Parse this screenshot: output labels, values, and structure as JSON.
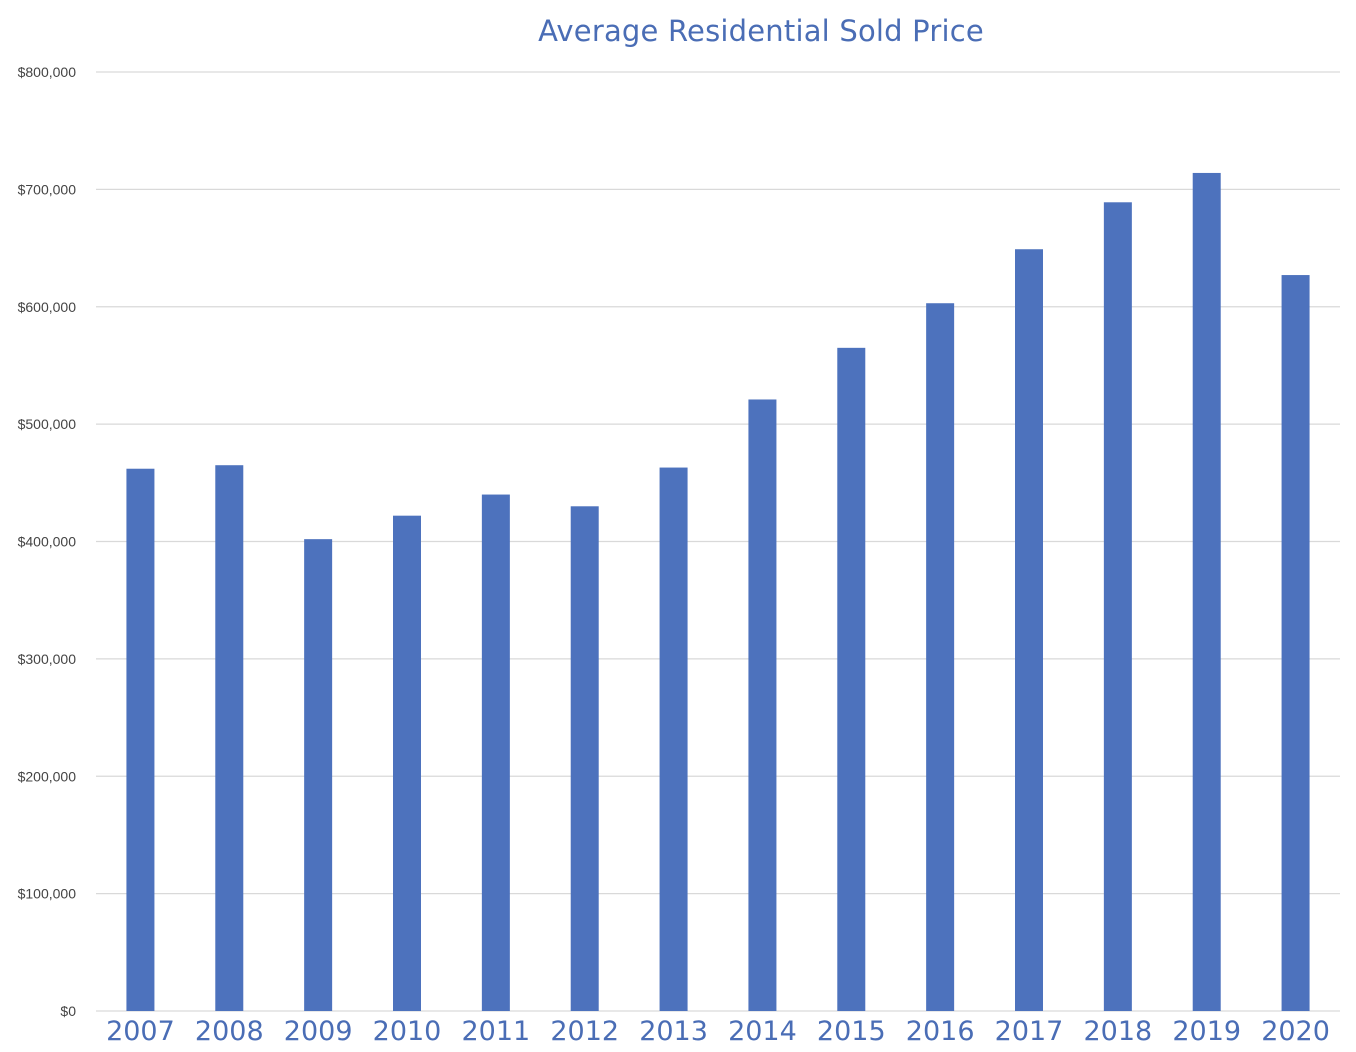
{
  "chart_data": {
    "type": "bar",
    "title": "Average Residential Sold Price",
    "xlabel": "",
    "ylabel": "",
    "categories": [
      "2007",
      "2008",
      "2009",
      "2010",
      "2011",
      "2012",
      "2013",
      "2014",
      "2015",
      "2016",
      "2017",
      "2018",
      "2019",
      "2020"
    ],
    "series": [
      {
        "values": [
          462000,
          465000,
          402000,
          422000,
          440000,
          430000,
          463000,
          521000,
          565000,
          603000,
          649000,
          689000,
          714000,
          627000
        ],
        "color": "#4d72bd"
      }
    ],
    "ylim": [
      0,
      800000
    ],
    "yticks": [
      0,
      100000,
      200000,
      300000,
      400000,
      500000,
      600000,
      700000,
      800000
    ],
    "ytick_labels": [
      "$0",
      "$100,000",
      "$200,000",
      "$300,000",
      "$400,000",
      "$500,000",
      "$600,000",
      "$700,000",
      "$800,000"
    ],
    "grid": true,
    "legend": "none"
  }
}
